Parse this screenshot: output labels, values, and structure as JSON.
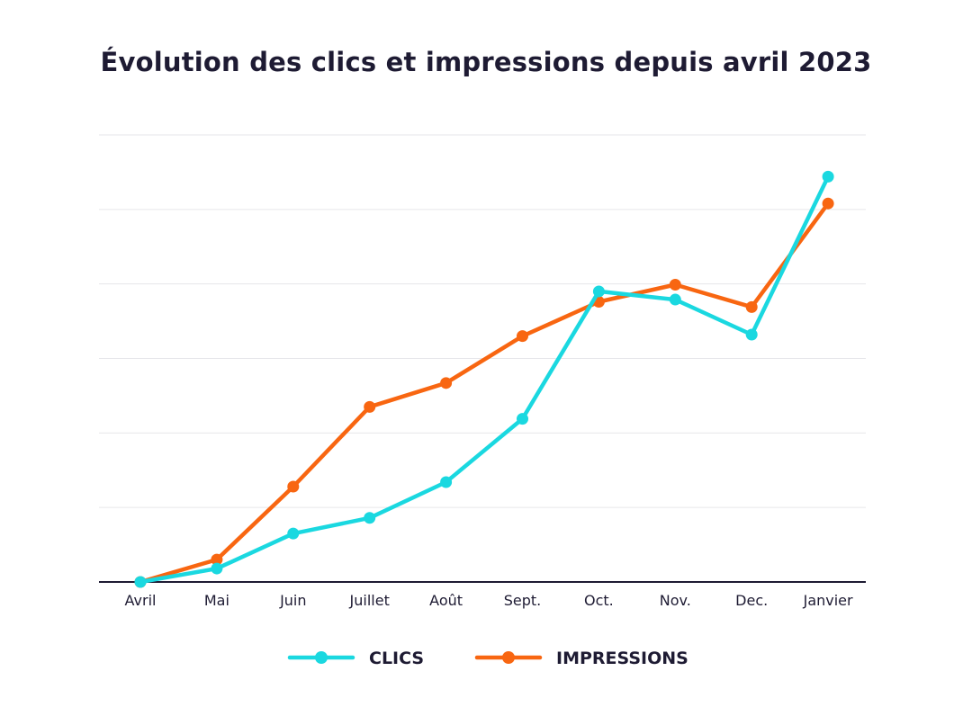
{
  "chart_data": {
    "type": "line",
    "title": "Évolution des clics et impressions depuis avril 2023",
    "categories": [
      "Avril",
      "Mai",
      "Juin",
      "Juillet",
      "Août",
      "Sept.",
      "Oct.",
      "Nov.",
      "Dec.",
      "Janvier"
    ],
    "ylim": [
      0,
      6
    ],
    "grid": true,
    "legend_position": "bottom",
    "series": [
      {
        "name": "CLICS",
        "color": "#1ad8e0",
        "values": [
          0,
          0.18,
          0.65,
          0.86,
          1.34,
          2.19,
          3.9,
          3.79,
          3.32,
          5.44
        ]
      },
      {
        "name": "IMPRESSIONS",
        "color": "#f86611",
        "values": [
          0,
          0.3,
          1.28,
          2.35,
          2.67,
          3.3,
          3.76,
          3.99,
          3.69,
          5.08
        ]
      }
    ]
  }
}
